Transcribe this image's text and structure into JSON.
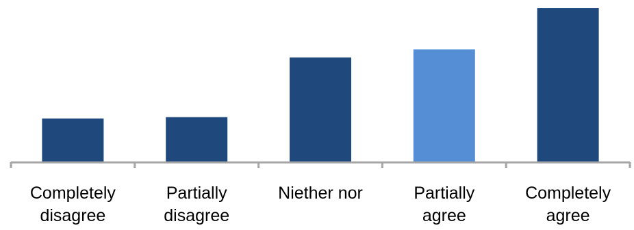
{
  "chart_data": {
    "type": "bar",
    "categories": [
      [
        "Completely",
        "disagree"
      ],
      [
        "Partially",
        "disagree"
      ],
      [
        "Niether nor"
      ],
      [
        "Partially",
        "agree"
      ],
      [
        "Completely",
        "agree"
      ]
    ],
    "values": [
      64,
      66,
      154,
      166,
      227
    ],
    "colors": [
      "#1F497D",
      "#1F497D",
      "#1F497D",
      "#558ED5",
      "#1F497D"
    ],
    "axis_color": "#A6A6A6",
    "ylim": [
      0,
      230
    ],
    "title": "",
    "xlabel": "",
    "ylabel": "",
    "grid": false,
    "legend": "none"
  }
}
